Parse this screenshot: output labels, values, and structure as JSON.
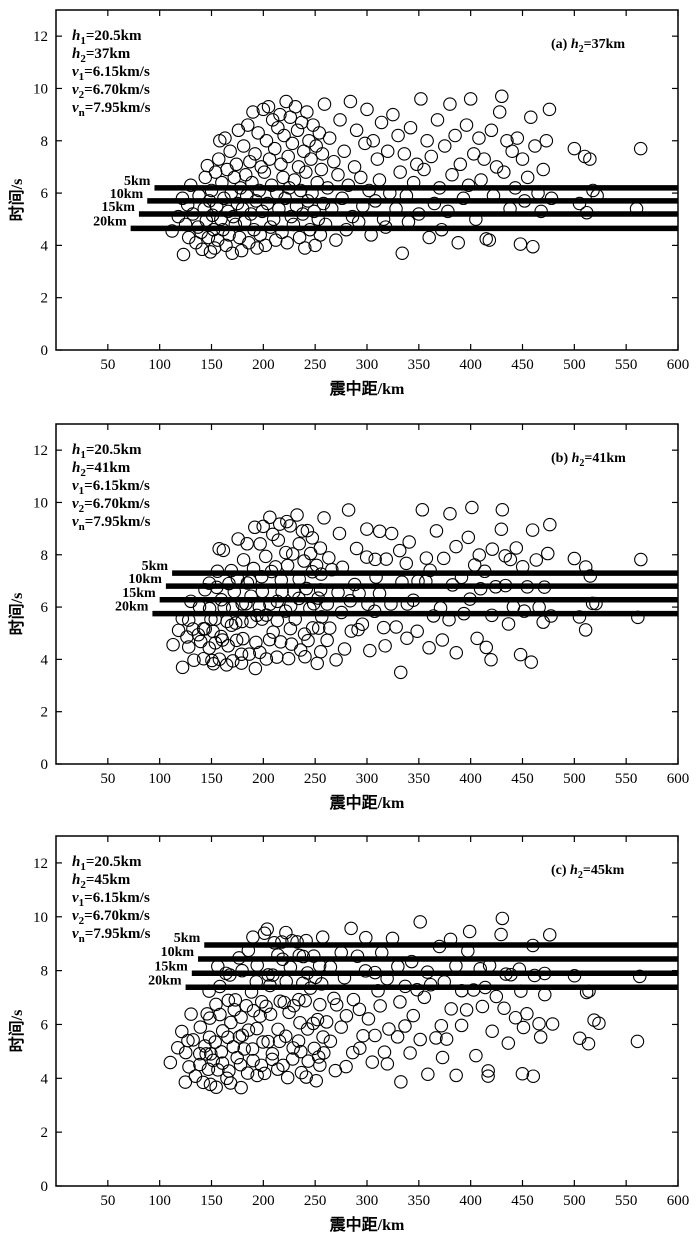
{
  "panels": [
    {
      "title": "(a) h2=37km",
      "title_prefix": "(a)",
      "title_var": "h",
      "title_sub": "2",
      "title_value": "=37km",
      "params": [
        {
          "var": "h",
          "sub": "1",
          "value": "=20.5km"
        },
        {
          "var": "h",
          "sub": "2",
          "value": "=37km"
        },
        {
          "var": "v",
          "sub": "1",
          "value": "=6.15km/s"
        },
        {
          "var": "v",
          "sub": "2",
          "value": "=6.70km/s"
        },
        {
          "var": "v",
          "sub": "n",
          "value": "=7.95km/s"
        }
      ],
      "lines": [
        {
          "label": "5km",
          "x_start": 95,
          "x_end": 600,
          "y": 6.2
        },
        {
          "label": "10km",
          "x_start": 88,
          "x_end": 600,
          "y": 5.7
        },
        {
          "label": "15km",
          "x_start": 80,
          "x_end": 600,
          "y": 5.2
        },
        {
          "label": "20km",
          "x_start": 72,
          "x_end": 600,
          "y": 4.65
        }
      ]
    },
    {
      "title": "(b) h2=41km",
      "title_prefix": "(b)",
      "title_var": "h",
      "title_sub": "2",
      "title_value": "=41km",
      "params": [
        {
          "var": "h",
          "sub": "1",
          "value": "=20.5km"
        },
        {
          "var": "h",
          "sub": "2",
          "value": "=41km"
        },
        {
          "var": "v",
          "sub": "1",
          "value": "=6.15km/s"
        },
        {
          "var": "v",
          "sub": "2",
          "value": "=6.70km/s"
        },
        {
          "var": "v",
          "sub": "n",
          "value": "=7.95km/s"
        }
      ],
      "lines": [
        {
          "label": "5km",
          "x_start": 112,
          "x_end": 600,
          "y": 7.3
        },
        {
          "label": "10km",
          "x_start": 106,
          "x_end": 600,
          "y": 6.8
        },
        {
          "label": "15km",
          "x_start": 100,
          "x_end": 600,
          "y": 6.28
        },
        {
          "label": "20km",
          "x_start": 93,
          "x_end": 600,
          "y": 5.75
        }
      ]
    },
    {
      "title": "(c) h2=45km",
      "title_prefix": "(c)",
      "title_var": "h",
      "title_sub": "2",
      "title_value": "=45km",
      "params": [
        {
          "var": "h",
          "sub": "1",
          "value": "=20.5km"
        },
        {
          "var": "h",
          "sub": "2",
          "value": "=45km"
        },
        {
          "var": "v",
          "sub": "1",
          "value": "=6.15km/s"
        },
        {
          "var": "v",
          "sub": "2",
          "value": "=6.70km/s"
        },
        {
          "var": "v",
          "sub": "n",
          "value": "=7.95km/s"
        }
      ],
      "lines": [
        {
          "label": "5km",
          "x_start": 143,
          "x_end": 600,
          "y": 8.95
        },
        {
          "label": "10km",
          "x_start": 137,
          "x_end": 600,
          "y": 8.43
        },
        {
          "label": "15km",
          "x_start": 131,
          "x_end": 600,
          "y": 7.9
        },
        {
          "label": "20km",
          "x_start": 125,
          "x_end": 600,
          "y": 7.38
        }
      ]
    }
  ],
  "chart_data": {
    "type": "scatter",
    "xlabel": "震中距/km",
    "ylabel": "时间/s",
    "xlim": [
      0,
      600
    ],
    "ylim": [
      0,
      13
    ],
    "xticks": [
      50,
      100,
      150,
      200,
      250,
      300,
      350,
      400,
      450,
      500,
      550,
      600
    ],
    "yticks": [
      0,
      2,
      4,
      6,
      8,
      10,
      12
    ],
    "grid": false,
    "marker": "open-circle",
    "points": [
      [
        112,
        4.55
      ],
      [
        118,
        5.1
      ],
      [
        122,
        5.8
      ],
      [
        123,
        3.65
      ],
      [
        125,
        4.8
      ],
      [
        127,
        5.55
      ],
      [
        128,
        4.3
      ],
      [
        130,
        6.3
      ],
      [
        132,
        5.2
      ],
      [
        135,
        4.1
      ],
      [
        137,
        4.7
      ],
      [
        138,
        5.9
      ],
      [
        140,
        4.5
      ],
      [
        141,
        3.85
      ],
      [
        143,
        5.4
      ],
      [
        144,
        6.6
      ],
      [
        145,
        4.95
      ],
      [
        146,
        7.05
      ],
      [
        147,
        4.3
      ],
      [
        148,
        5.7
      ],
      [
        149,
        3.75
      ],
      [
        150,
        6.1
      ],
      [
        151,
        5.15
      ],
      [
        152,
        4.6
      ],
      [
        153,
        3.9
      ],
      [
        154,
        6.8
      ],
      [
        155,
        5.5
      ],
      [
        156,
        4.2
      ],
      [
        157,
        7.3
      ],
      [
        158,
        8.0
      ],
      [
        159,
        5.0
      ],
      [
        160,
        6.4
      ],
      [
        161,
        4.6
      ],
      [
        162,
        5.8
      ],
      [
        163,
        8.1
      ],
      [
        164,
        4.0
      ],
      [
        165,
        6.9
      ],
      [
        166,
        5.3
      ],
      [
        167,
        4.4
      ],
      [
        168,
        7.6
      ],
      [
        169,
        6.0
      ],
      [
        170,
        3.7
      ],
      [
        171,
        5.1
      ],
      [
        172,
        6.6
      ],
      [
        173,
        4.8
      ],
      [
        174,
        7.1
      ],
      [
        175,
        5.6
      ],
      [
        176,
        8.4
      ],
      [
        177,
        4.3
      ],
      [
        178,
        6.2
      ],
      [
        179,
        3.8
      ],
      [
        180,
        5.4
      ],
      [
        181,
        7.8
      ],
      [
        182,
        4.9
      ],
      [
        183,
        6.7
      ],
      [
        184,
        5.9
      ],
      [
        185,
        8.6
      ],
      [
        186,
        4.1
      ],
      [
        187,
        7.2
      ],
      [
        188,
        5.2
      ],
      [
        189,
        6.4
      ],
      [
        190,
        9.1
      ],
      [
        191,
        4.6
      ],
      [
        192,
        7.5
      ],
      [
        193,
        5.7
      ],
      [
        194,
        3.9
      ],
      [
        195,
        8.3
      ],
      [
        196,
        6.1
      ],
      [
        197,
        4.4
      ],
      [
        198,
        7.0
      ],
      [
        199,
        5.3
      ],
      [
        200,
        9.2
      ],
      [
        201,
        6.8
      ],
      [
        202,
        4.0
      ],
      [
        203,
        8.0
      ],
      [
        204,
        5.6
      ],
      [
        205,
        9.3
      ],
      [
        206,
        7.3
      ],
      [
        207,
        4.7
      ],
      [
        208,
        6.3
      ],
      [
        209,
        8.8
      ],
      [
        210,
        5.0
      ],
      [
        211,
        7.7
      ],
      [
        212,
        4.2
      ],
      [
        213,
        6.0
      ],
      [
        214,
        8.5
      ],
      [
        215,
        5.4
      ],
      [
        216,
        9.0
      ],
      [
        217,
        7.1
      ],
      [
        218,
        4.5
      ],
      [
        219,
        6.6
      ],
      [
        220,
        8.2
      ],
      [
        221,
        5.8
      ],
      [
        222,
        9.5
      ],
      [
        223,
        4.1
      ],
      [
        224,
        7.4
      ],
      [
        225,
        6.2
      ],
      [
        226,
        8.9
      ],
      [
        227,
        5.1
      ],
      [
        228,
        7.9
      ],
      [
        229,
        4.8
      ],
      [
        230,
        6.5
      ],
      [
        231,
        9.3
      ],
      [
        232,
        5.5
      ],
      [
        233,
        8.4
      ],
      [
        234,
        7.0
      ],
      [
        235,
        4.3
      ],
      [
        236,
        6.1
      ],
      [
        237,
        8.7
      ],
      [
        238,
        5.2
      ],
      [
        239,
        7.6
      ],
      [
        240,
        3.9
      ],
      [
        241,
        6.8
      ],
      [
        242,
        9.1
      ],
      [
        243,
        5.7
      ],
      [
        244,
        8.0
      ],
      [
        245,
        4.6
      ],
      [
        246,
        7.3
      ],
      [
        247,
        6.0
      ],
      [
        248,
        8.6
      ],
      [
        249,
        5.3
      ],
      [
        250,
        4.0
      ],
      [
        251,
        7.8
      ],
      [
        252,
        6.4
      ],
      [
        253,
        5.0
      ],
      [
        254,
        8.3
      ],
      [
        255,
        4.4
      ],
      [
        256,
        6.9
      ],
      [
        257,
        7.5
      ],
      [
        258,
        5.6
      ],
      [
        259,
        9.4
      ],
      [
        260,
        4.8
      ],
      [
        262,
        6.2
      ],
      [
        264,
        8.1
      ],
      [
        266,
        5.4
      ],
      [
        268,
        7.2
      ],
      [
        270,
        4.2
      ],
      [
        272,
        6.7
      ],
      [
        274,
        8.8
      ],
      [
        276,
        5.8
      ],
      [
        278,
        7.6
      ],
      [
        280,
        4.6
      ],
      [
        282,
        6.3
      ],
      [
        284,
        9.5
      ],
      [
        286,
        5.1
      ],
      [
        288,
        7.0
      ],
      [
        290,
        8.4
      ],
      [
        292,
        4.9
      ],
      [
        294,
        6.6
      ],
      [
        296,
        5.5
      ],
      [
        298,
        7.9
      ],
      [
        300,
        9.2
      ],
      [
        302,
        6.1
      ],
      [
        304,
        4.4
      ],
      [
        306,
        8.0
      ],
      [
        308,
        5.7
      ],
      [
        310,
        7.3
      ],
      [
        312,
        6.5
      ],
      [
        314,
        8.7
      ],
      [
        316,
        5.0
      ],
      [
        318,
        4.7
      ],
      [
        320,
        7.6
      ],
      [
        322,
        6.0
      ],
      [
        325,
        9.0
      ],
      [
        328,
        5.4
      ],
      [
        330,
        8.2
      ],
      [
        332,
        6.8
      ],
      [
        334,
        3.7
      ],
      [
        336,
        7.5
      ],
      [
        338,
        5.9
      ],
      [
        340,
        4.9
      ],
      [
        342,
        8.5
      ],
      [
        345,
        6.4
      ],
      [
        348,
        7.1
      ],
      [
        350,
        5.2
      ],
      [
        352,
        9.6
      ],
      [
        355,
        6.9
      ],
      [
        358,
        8.0
      ],
      [
        360,
        4.3
      ],
      [
        362,
        7.4
      ],
      [
        365,
        5.6
      ],
      [
        368,
        8.8
      ],
      [
        370,
        6.2
      ],
      [
        372,
        4.6
      ],
      [
        375,
        7.8
      ],
      [
        378,
        5.3
      ],
      [
        380,
        9.4
      ],
      [
        382,
        6.7
      ],
      [
        385,
        8.2
      ],
      [
        388,
        4.1
      ],
      [
        390,
        7.1
      ],
      [
        393,
        5.8
      ],
      [
        396,
        8.6
      ],
      [
        398,
        6.3
      ],
      [
        400,
        9.6
      ],
      [
        403,
        7.5
      ],
      [
        405,
        5.0
      ],
      [
        408,
        8.1
      ],
      [
        410,
        6.5
      ],
      [
        413,
        7.3
      ],
      [
        415,
        4.25
      ],
      [
        418,
        4.2
      ],
      [
        420,
        8.4
      ],
      [
        422,
        5.9
      ],
      [
        425,
        7.0
      ],
      [
        428,
        9.1
      ],
      [
        430,
        9.7
      ],
      [
        432,
        6.8
      ],
      [
        435,
        8.0
      ],
      [
        438,
        5.4
      ],
      [
        440,
        7.6
      ],
      [
        443,
        6.2
      ],
      [
        445,
        8.1
      ],
      [
        448,
        4.05
      ],
      [
        450,
        7.3
      ],
      [
        452,
        5.7
      ],
      [
        455,
        6.6
      ],
      [
        458,
        8.9
      ],
      [
        460,
        3.95
      ],
      [
        462,
        7.8
      ],
      [
        465,
        6.0
      ],
      [
        468,
        5.3
      ],
      [
        470,
        6.9
      ],
      [
        473,
        8.0
      ],
      [
        476,
        9.2
      ],
      [
        478,
        5.8
      ],
      [
        500,
        7.7
      ],
      [
        505,
        5.6
      ],
      [
        510,
        7.4
      ],
      [
        512,
        5.25
      ],
      [
        515,
        7.3
      ],
      [
        518,
        6.1
      ],
      [
        522,
        5.9
      ],
      [
        560,
        5.4
      ],
      [
        564,
        7.7
      ]
    ]
  }
}
